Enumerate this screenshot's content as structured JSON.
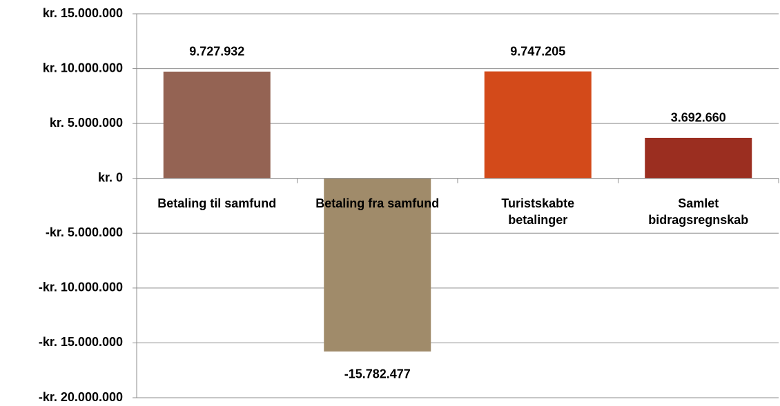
{
  "chart_data": {
    "type": "bar",
    "categories": [
      "Betaling til samfund",
      "Betaling fra samfund",
      "Turistskabte betalinger",
      "Samlet bidragsregnskab"
    ],
    "values": [
      9727932,
      -15782477,
      9747205,
      3692660
    ],
    "value_labels": [
      "9.727.932",
      "-15.782.477",
      "9.747.205",
      "3.692.660"
    ],
    "colors": [
      "#946353",
      "#a08b6a",
      "#d34a1a",
      "#9b2e20"
    ],
    "ylim": [
      -20000000,
      15000000
    ],
    "yticks": [
      {
        "value": -20000000,
        "label": "-kr. 20.000.000"
      },
      {
        "value": -15000000,
        "label": "-kr. 15.000.000"
      },
      {
        "value": -10000000,
        "label": "-kr. 10.000.000"
      },
      {
        "value": -5000000,
        "label": "-kr. 5.000.000"
      },
      {
        "value": 0,
        "label": "kr. 0"
      },
      {
        "value": 5000000,
        "label": "kr. 5.000.000"
      },
      {
        "value": 10000000,
        "label": "kr. 10.000.000"
      },
      {
        "value": 15000000,
        "label": "kr. 15.000.000"
      }
    ],
    "grid": true
  }
}
